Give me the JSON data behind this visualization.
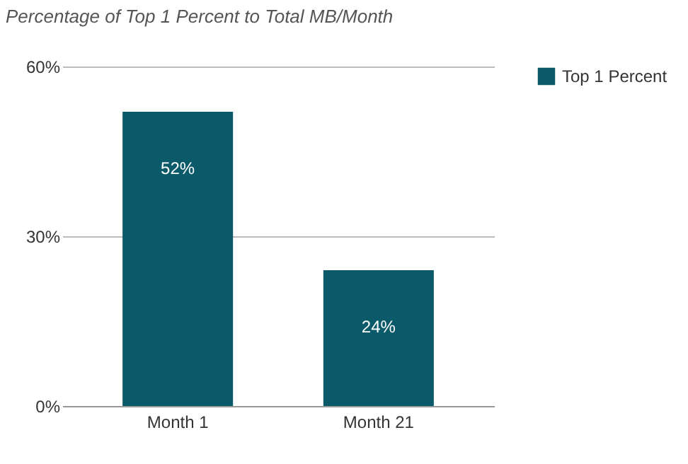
{
  "chart_data": {
    "type": "bar",
    "title": "Percentage of Top 1 Percent to Total MB/Month",
    "categories": [
      "Month 1",
      "Month 21"
    ],
    "series": [
      {
        "name": "Top 1 Percent",
        "color": "#0b5a6a",
        "values": [
          52,
          24
        ],
        "value_labels": [
          "52%",
          "24%"
        ]
      }
    ],
    "ylim": [
      0,
      60
    ],
    "yticks": [
      {
        "value": 0,
        "label": "0%"
      },
      {
        "value": 30,
        "label": "30%"
      },
      {
        "value": 60,
        "label": "60%"
      }
    ],
    "grid": "y",
    "legend": "right"
  }
}
